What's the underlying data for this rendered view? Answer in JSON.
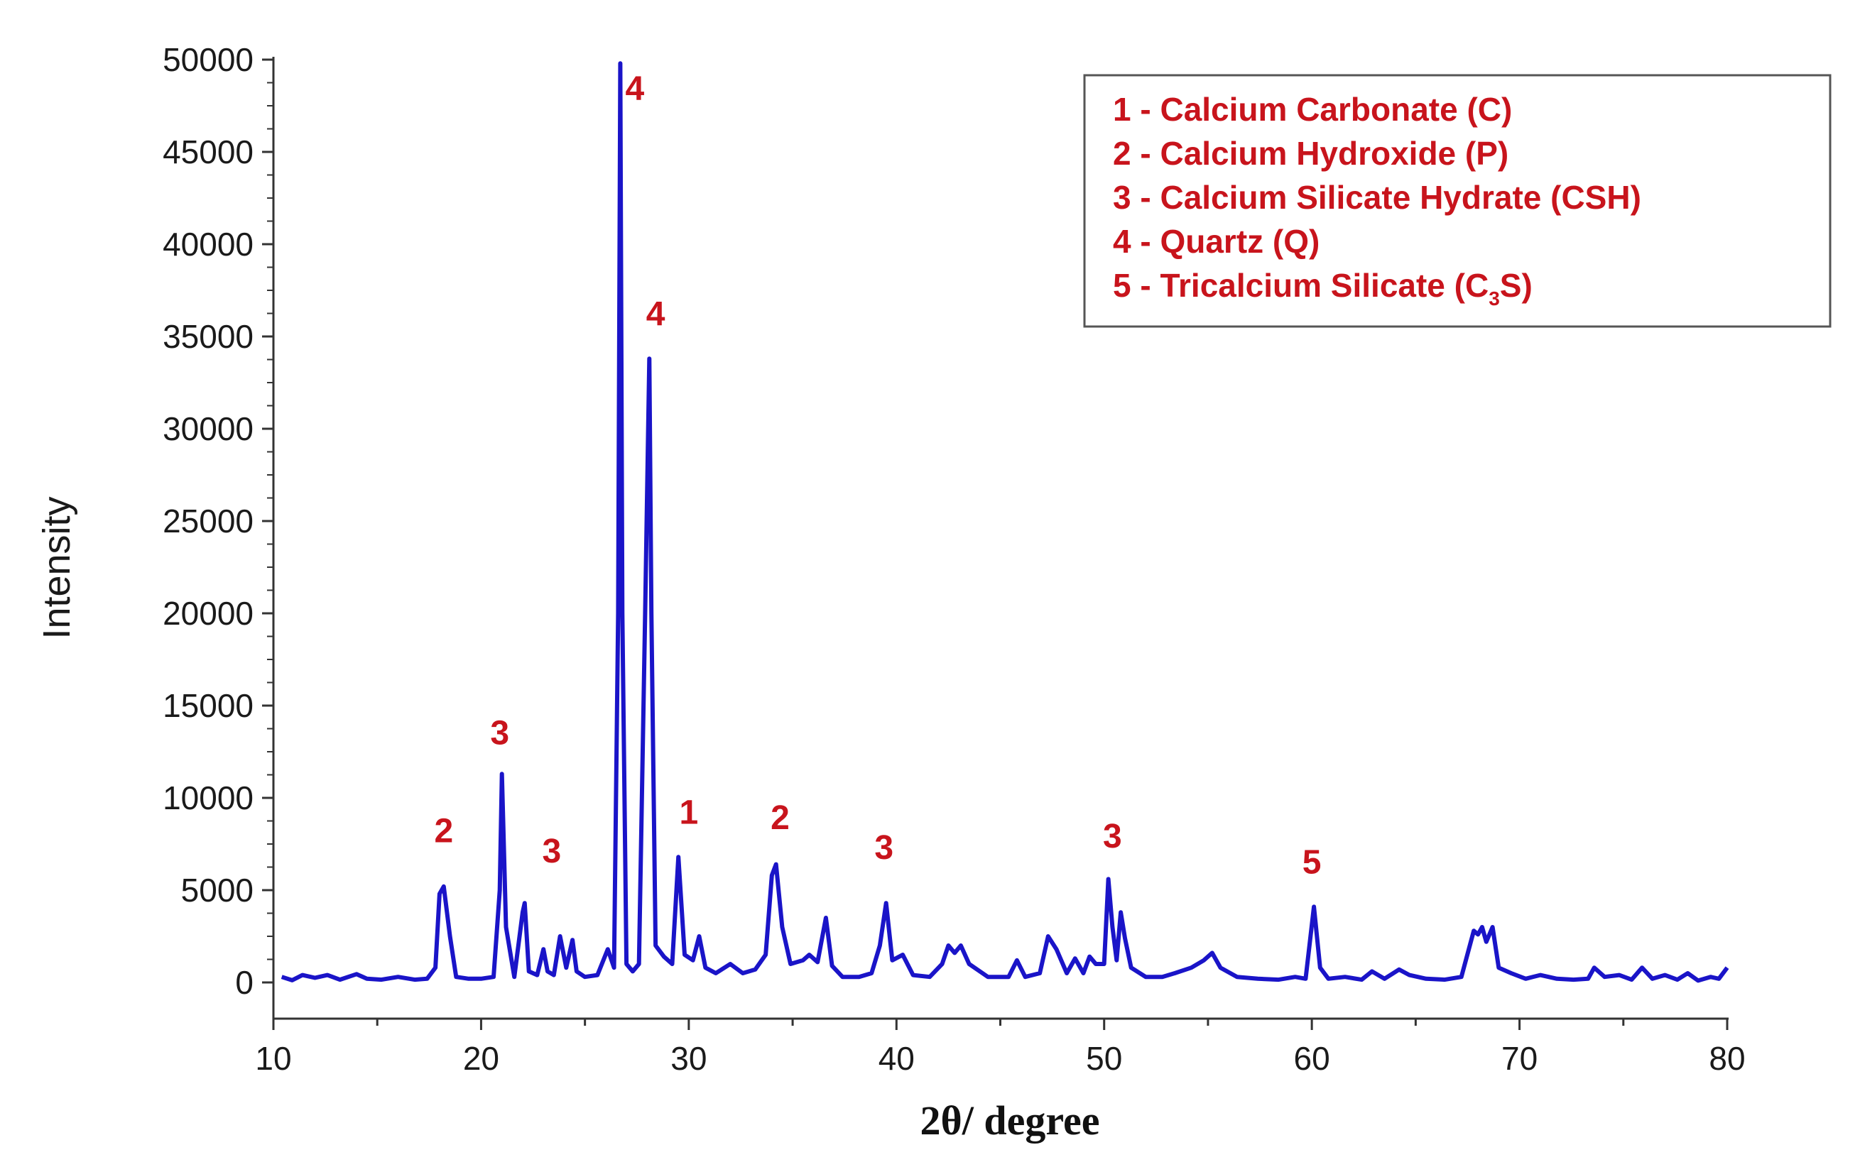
{
  "chart_data": {
    "type": "line",
    "xlabel": "2θ/ degree",
    "ylabel": "Intensity",
    "xlim": [
      10,
      80
    ],
    "ylim": [
      0,
      50000
    ],
    "x_ticks": [
      10,
      20,
      30,
      40,
      50,
      60,
      70,
      80
    ],
    "y_ticks": [
      0,
      5000,
      10000,
      15000,
      20000,
      25000,
      30000,
      35000,
      40000,
      45000,
      50000
    ],
    "grid": false,
    "colors": {
      "series": "#1a14c8",
      "labels": "#c8141c",
      "axes": "#333333"
    },
    "series": [
      {
        "x": [
          10.4,
          10.9,
          11.4,
          12.0,
          12.6,
          13.2,
          14.0,
          14.5,
          15.2,
          16.0,
          16.8,
          17.4,
          17.8,
          18.0,
          18.2,
          18.5,
          18.8,
          19.4,
          20.0,
          20.6,
          20.9,
          21.0,
          21.2,
          21.6,
          22.0,
          22.1,
          22.3,
          22.7,
          23.0,
          23.2,
          23.5,
          23.8,
          24.1,
          24.4,
          24.6,
          25.0,
          25.6,
          26.1,
          26.4,
          26.6,
          26.7,
          26.8,
          27.0,
          27.3,
          27.6,
          27.9,
          28.1,
          28.2,
          28.4,
          28.8,
          29.2,
          29.5,
          29.8,
          30.2,
          30.5,
          30.8,
          31.3,
          32.0,
          32.6,
          33.2,
          33.7,
          34.0,
          34.2,
          34.5,
          34.9,
          35.5,
          35.8,
          36.2,
          36.6,
          36.9,
          37.4,
          38.2,
          38.8,
          39.2,
          39.5,
          39.8,
          40.3,
          40.8,
          41.6,
          42.2,
          42.5,
          42.8,
          43.1,
          43.5,
          44.4,
          45.4,
          45.8,
          46.2,
          46.9,
          47.3,
          47.7,
          48.2,
          48.6,
          49.0,
          49.3,
          49.6,
          50.0,
          50.2,
          50.4,
          50.6,
          50.8,
          51.0,
          51.3,
          52.0,
          52.8,
          53.4,
          54.2,
          54.8,
          55.2,
          55.6,
          56.4,
          57.4,
          58.4,
          59.2,
          59.7,
          60.1,
          60.4,
          60.8,
          61.6,
          62.4,
          62.9,
          63.5,
          64.2,
          64.7,
          65.5,
          66.4,
          67.2,
          67.8,
          68.0,
          68.2,
          68.4,
          68.7,
          69.0,
          69.6,
          70.3,
          71.0,
          71.8,
          72.6,
          73.3,
          73.6,
          74.1,
          74.8,
          75.4,
          75.9,
          76.4,
          77.0,
          77.6,
          78.1,
          78.6,
          79.2,
          79.6,
          80.0
        ],
        "y": [
          300,
          120,
          400,
          250,
          400,
          150,
          450,
          200,
          150,
          300,
          150,
          200,
          800,
          4800,
          5200,
          2500,
          300,
          200,
          200,
          300,
          5000,
          11300,
          3000,
          300,
          3800,
          4300,
          600,
          400,
          1800,
          600,
          400,
          2500,
          800,
          2300,
          600,
          300,
          400,
          1800,
          800,
          20000,
          49800,
          20000,
          1000,
          600,
          1000,
          20000,
          33800,
          20000,
          2000,
          1400,
          1000,
          6800,
          1500,
          1200,
          2500,
          800,
          500,
          1000,
          500,
          700,
          1500,
          5800,
          6400,
          3000,
          1000,
          1200,
          1500,
          1100,
          3500,
          900,
          300,
          300,
          500,
          2000,
          4300,
          1200,
          1500,
          400,
          300,
          1000,
          2000,
          1600,
          2000,
          1000,
          300,
          300,
          1200,
          300,
          500,
          2500,
          1800,
          500,
          1300,
          500,
          1400,
          1000,
          1000,
          5600,
          3000,
          1200,
          3800,
          2400,
          800,
          300,
          300,
          500,
          800,
          1200,
          1600,
          800,
          300,
          200,
          150,
          300,
          200,
          4100,
          800,
          200,
          300,
          150,
          600,
          200,
          700,
          400,
          200,
          150,
          300,
          2800,
          2600,
          3000,
          2200,
          3000,
          800,
          500,
          200,
          400,
          200,
          150,
          200,
          800,
          300,
          400,
          150,
          800,
          200,
          400,
          150,
          500,
          100,
          300,
          200,
          800
        ]
      }
    ],
    "annotations": [
      {
        "text": "2",
        "x": 18.2,
        "y": 7600
      },
      {
        "text": "3",
        "x": 20.9,
        "y": 12900
      },
      {
        "text": "3",
        "x": 23.4,
        "y": 6500
      },
      {
        "text": "4",
        "x": 27.4,
        "y": 47800
      },
      {
        "text": "4",
        "x": 28.4,
        "y": 35600
      },
      {
        "text": "1",
        "x": 30.0,
        "y": 8600
      },
      {
        "text": "2",
        "x": 34.4,
        "y": 8300
      },
      {
        "text": "3",
        "x": 39.4,
        "y": 6700
      },
      {
        "text": "3",
        "x": 50.4,
        "y": 7300
      },
      {
        "text": "5",
        "x": 60.0,
        "y": 5900
      }
    ],
    "legend": {
      "position": "top-right",
      "entries": [
        {
          "number": "1 - ",
          "name": "Calcium Carbonate (C)"
        },
        {
          "number": "2 - ",
          "name": "Calcium Hydroxide (P)"
        },
        {
          "number": "3 - ",
          "name": "Calcium Silicate Hydrate (CSH)"
        },
        {
          "number": "4 - ",
          "name": "Quartz (Q)"
        },
        {
          "number": "5 - ",
          "name_before_sub": "Tricalcium Silicate (C",
          "sub": "3",
          "name_after_sub": "S)"
        }
      ]
    }
  }
}
